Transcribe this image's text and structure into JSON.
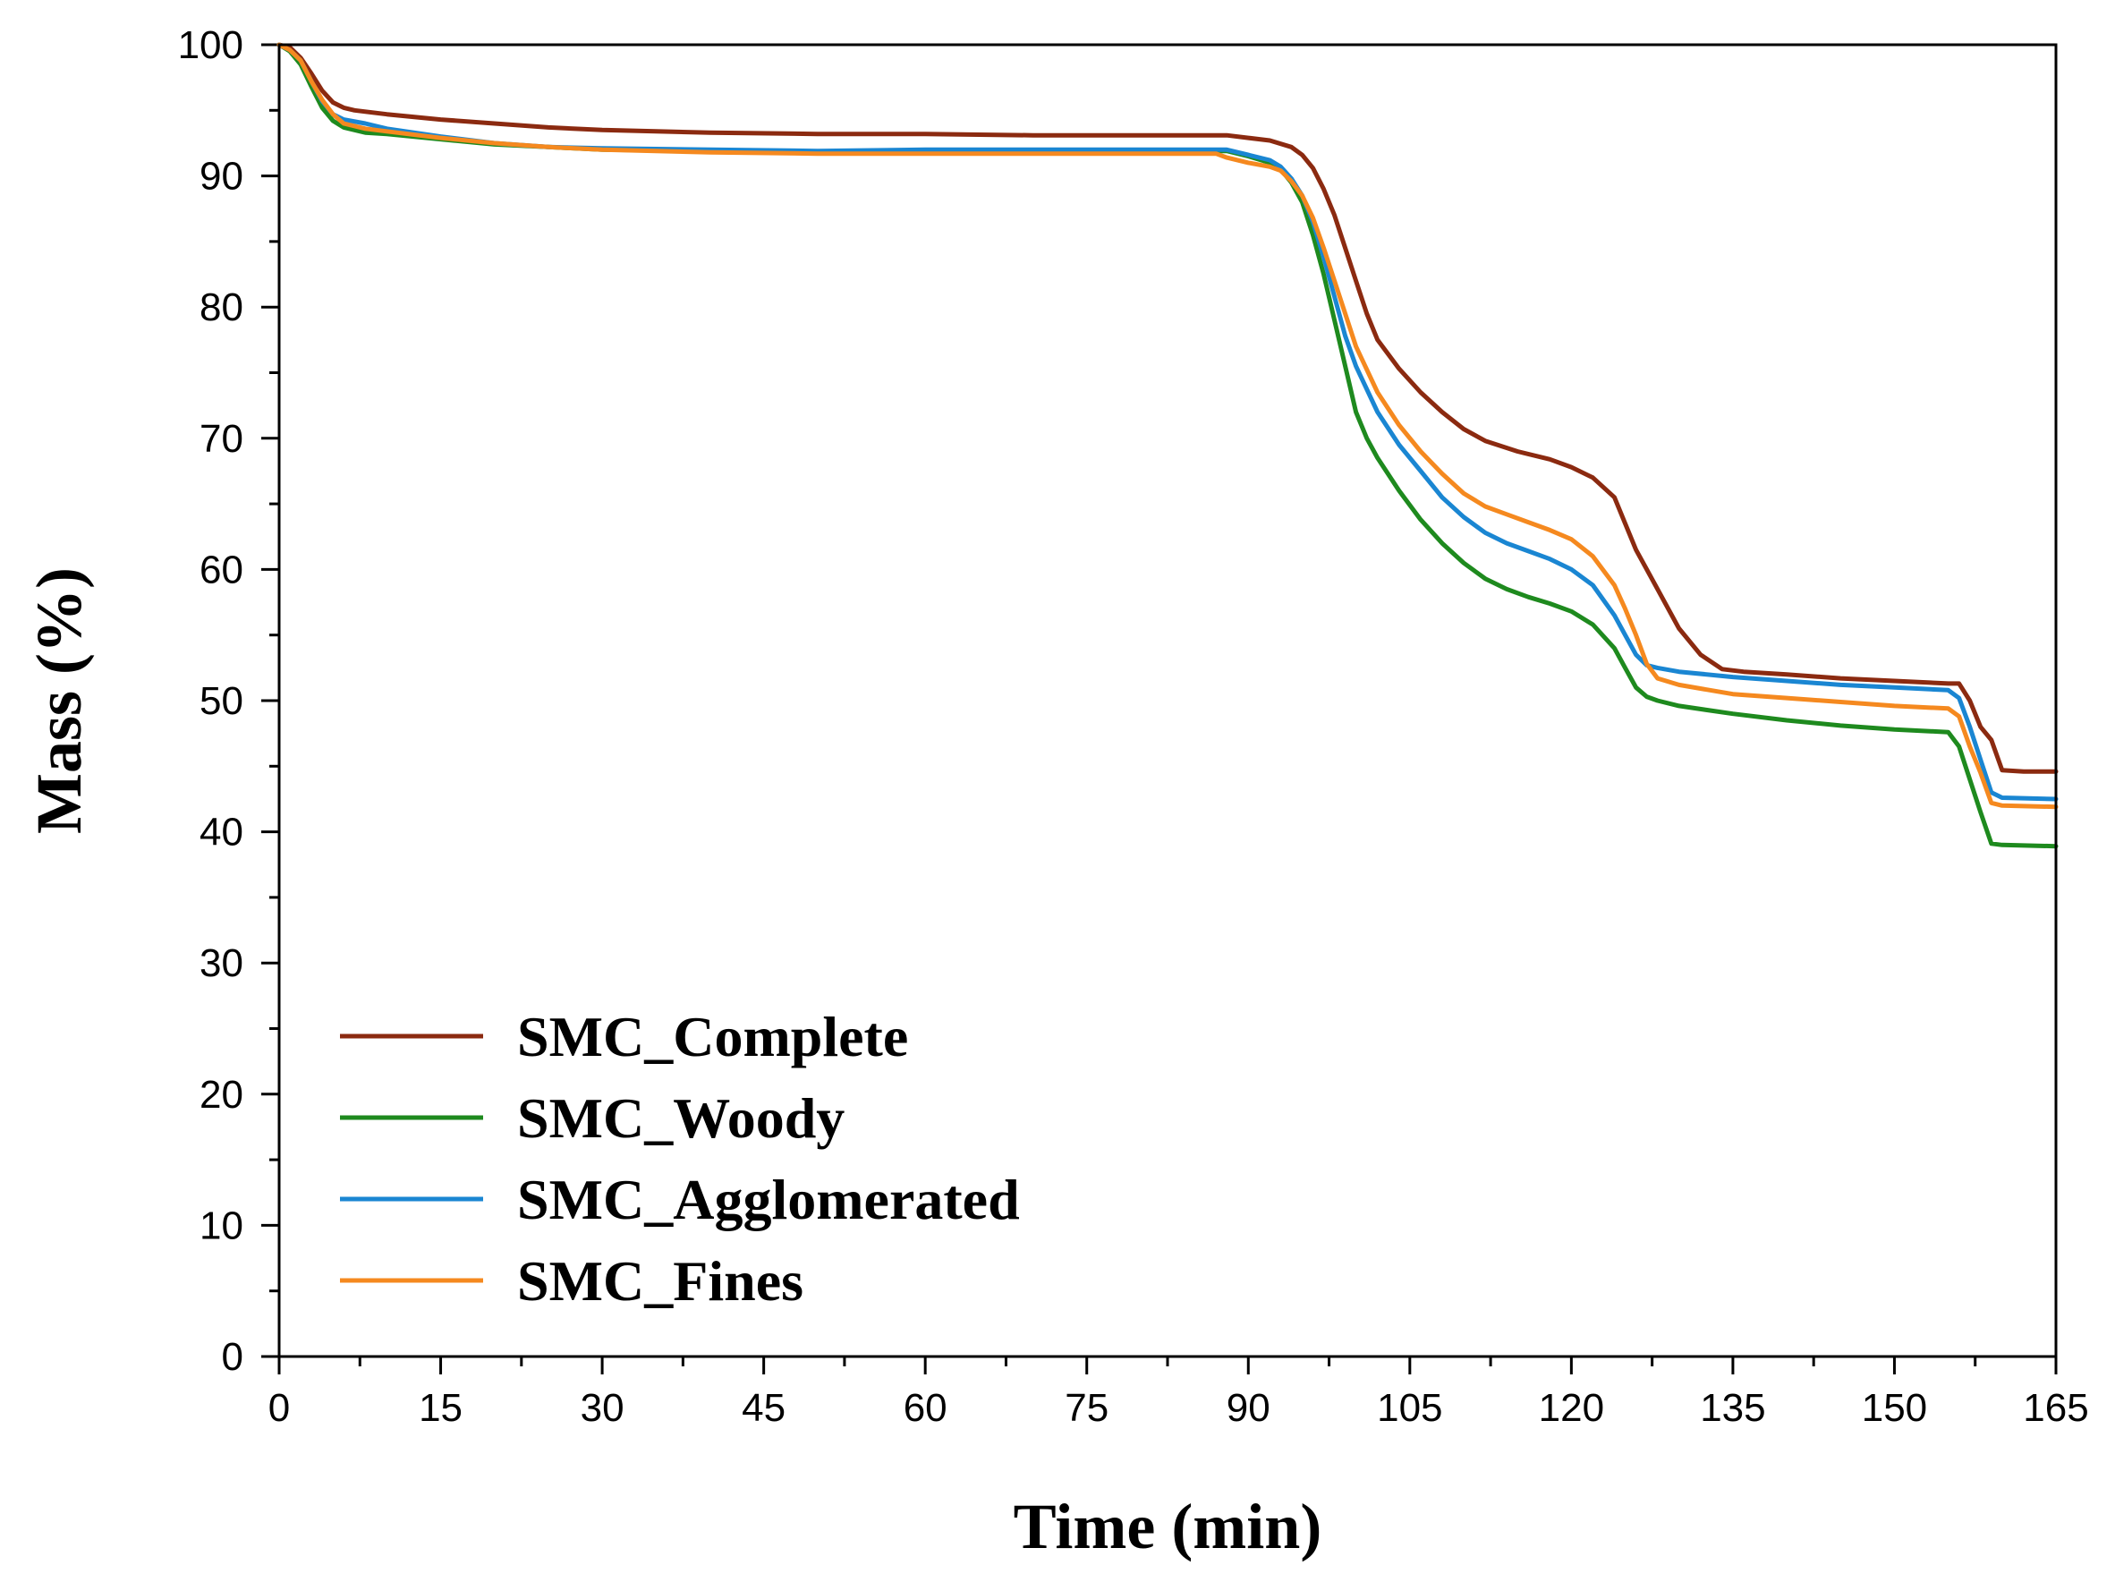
{
  "chart_data": {
    "type": "line",
    "title": "",
    "xlabel": "Time  (min)",
    "ylabel": "Mass  (%)",
    "xlim": [
      0,
      165
    ],
    "ylim": [
      0,
      100
    ],
    "xticks": [
      0,
      15,
      30,
      45,
      60,
      75,
      90,
      105,
      120,
      135,
      150,
      165
    ],
    "yticks": [
      0,
      10,
      20,
      30,
      40,
      50,
      60,
      70,
      80,
      90,
      100
    ],
    "xtick_labels": [
      "0",
      "15",
      "30",
      "45",
      "60",
      "75",
      "90",
      "105",
      "120",
      "135",
      "150",
      "165"
    ],
    "ytick_labels": [
      "0",
      "10",
      "20",
      "30",
      "40",
      "50",
      "60",
      "70",
      "80",
      "90",
      "100"
    ],
    "grid": false,
    "legend_position": "bottom-left",
    "series": [
      {
        "name": "SMC_Complete",
        "color": "#8B2A10",
        "points": [
          [
            0,
            100
          ],
          [
            1,
            99.8
          ],
          [
            2,
            99
          ],
          [
            3,
            97.8
          ],
          [
            4,
            96.5
          ],
          [
            5,
            95.6
          ],
          [
            6,
            95.2
          ],
          [
            7,
            95
          ],
          [
            10,
            94.7
          ],
          [
            15,
            94.3
          ],
          [
            20,
            94
          ],
          [
            25,
            93.7
          ],
          [
            30,
            93.5
          ],
          [
            40,
            93.3
          ],
          [
            50,
            93.2
          ],
          [
            60,
            93.2
          ],
          [
            70,
            93.1
          ],
          [
            80,
            93.1
          ],
          [
            88,
            93.1
          ],
          [
            90,
            92.9
          ],
          [
            92,
            92.7
          ],
          [
            94,
            92.2
          ],
          [
            95,
            91.6
          ],
          [
            96,
            90.6
          ],
          [
            97,
            89
          ],
          [
            98,
            87
          ],
          [
            99,
            84.5
          ],
          [
            100,
            82
          ],
          [
            101,
            79.5
          ],
          [
            102,
            77.5
          ],
          [
            104,
            75.3
          ],
          [
            106,
            73.5
          ],
          [
            108,
            72
          ],
          [
            110,
            70.7
          ],
          [
            112,
            69.8
          ],
          [
            115,
            69
          ],
          [
            118,
            68.4
          ],
          [
            120,
            67.8
          ],
          [
            122,
            67
          ],
          [
            124,
            65.5
          ],
          [
            125,
            63.5
          ],
          [
            126,
            61.5
          ],
          [
            128,
            58.5
          ],
          [
            130,
            55.5
          ],
          [
            132,
            53.5
          ],
          [
            134,
            52.4
          ],
          [
            136,
            52.2
          ],
          [
            140,
            52
          ],
          [
            145,
            51.7
          ],
          [
            150,
            51.5
          ],
          [
            155,
            51.3
          ],
          [
            156,
            51.3
          ],
          [
            157,
            50
          ],
          [
            158,
            48
          ],
          [
            159,
            47
          ],
          [
            160,
            44.7
          ],
          [
            162,
            44.6
          ],
          [
            165,
            44.6
          ]
        ]
      },
      {
        "name": "SMC_Woody",
        "color": "#1E8A1E",
        "points": [
          [
            0,
            100
          ],
          [
            1,
            99.5
          ],
          [
            2,
            98.5
          ],
          [
            3,
            96.8
          ],
          [
            4,
            95.2
          ],
          [
            5,
            94.2
          ],
          [
            6,
            93.7
          ],
          [
            8,
            93.3
          ],
          [
            10,
            93.2
          ],
          [
            15,
            92.8
          ],
          [
            20,
            92.4
          ],
          [
            25,
            92.2
          ],
          [
            30,
            92
          ],
          [
            40,
            91.9
          ],
          [
            50,
            91.8
          ],
          [
            60,
            91.9
          ],
          [
            70,
            91.9
          ],
          [
            80,
            91.9
          ],
          [
            88,
            91.9
          ],
          [
            90,
            91.5
          ],
          [
            92,
            91
          ],
          [
            93,
            90.5
          ],
          [
            94,
            89.5
          ],
          [
            95,
            88
          ],
          [
            96,
            85.5
          ],
          [
            97,
            82.5
          ],
          [
            98,
            79
          ],
          [
            99,
            75.5
          ],
          [
            100,
            72
          ],
          [
            101,
            70
          ],
          [
            102,
            68.5
          ],
          [
            104,
            66
          ],
          [
            106,
            63.8
          ],
          [
            108,
            62
          ],
          [
            110,
            60.5
          ],
          [
            112,
            59.3
          ],
          [
            114,
            58.5
          ],
          [
            116,
            57.9
          ],
          [
            118,
            57.4
          ],
          [
            120,
            56.8
          ],
          [
            122,
            55.8
          ],
          [
            124,
            54
          ],
          [
            125,
            52.5
          ],
          [
            126,
            51
          ],
          [
            127,
            50.3
          ],
          [
            128,
            50
          ],
          [
            130,
            49.6
          ],
          [
            135,
            49
          ],
          [
            140,
            48.5
          ],
          [
            145,
            48.1
          ],
          [
            150,
            47.8
          ],
          [
            155,
            47.6
          ],
          [
            156,
            46.5
          ],
          [
            157,
            44
          ],
          [
            158,
            41.5
          ],
          [
            159,
            39.1
          ],
          [
            160,
            39
          ],
          [
            165,
            38.9
          ]
        ]
      },
      {
        "name": "SMC_Agglomerated",
        "color": "#1A86D2",
        "points": [
          [
            0,
            100
          ],
          [
            1,
            99.6
          ],
          [
            2,
            98.8
          ],
          [
            3,
            97.2
          ],
          [
            4,
            95.7
          ],
          [
            5,
            94.7
          ],
          [
            6,
            94.3
          ],
          [
            8,
            94
          ],
          [
            10,
            93.6
          ],
          [
            15,
            93
          ],
          [
            20,
            92.5
          ],
          [
            25,
            92.2
          ],
          [
            30,
            92.1
          ],
          [
            40,
            92
          ],
          [
            50,
            91.9
          ],
          [
            60,
            92
          ],
          [
            70,
            92
          ],
          [
            80,
            92
          ],
          [
            88,
            92
          ],
          [
            90,
            91.6
          ],
          [
            92,
            91.2
          ],
          [
            93,
            90.7
          ],
          [
            94,
            89.8
          ],
          [
            95,
            88.5
          ],
          [
            96,
            86.5
          ],
          [
            97,
            83.8
          ],
          [
            98,
            80.8
          ],
          [
            99,
            77.8
          ],
          [
            100,
            75.5
          ],
          [
            102,
            72
          ],
          [
            104,
            69.5
          ],
          [
            106,
            67.5
          ],
          [
            108,
            65.5
          ],
          [
            110,
            64
          ],
          [
            112,
            62.8
          ],
          [
            114,
            62
          ],
          [
            116,
            61.4
          ],
          [
            118,
            60.8
          ],
          [
            120,
            60
          ],
          [
            122,
            58.8
          ],
          [
            124,
            56.5
          ],
          [
            125,
            55
          ],
          [
            126,
            53.5
          ],
          [
            127,
            52.7
          ],
          [
            128,
            52.5
          ],
          [
            130,
            52.2
          ],
          [
            135,
            51.8
          ],
          [
            140,
            51.5
          ],
          [
            145,
            51.2
          ],
          [
            150,
            51
          ],
          [
            155,
            50.8
          ],
          [
            156,
            50.2
          ],
          [
            157,
            48
          ],
          [
            158,
            45.5
          ],
          [
            159,
            43
          ],
          [
            160,
            42.6
          ],
          [
            165,
            42.5
          ]
        ]
      },
      {
        "name": "SMC_Fines",
        "color": "#F5891F",
        "points": [
          [
            0,
            100
          ],
          [
            1,
            99.6
          ],
          [
            2,
            98.8
          ],
          [
            3,
            97.2
          ],
          [
            4,
            95.8
          ],
          [
            5,
            94.7
          ],
          [
            6,
            94
          ],
          [
            8,
            93.6
          ],
          [
            10,
            93.4
          ],
          [
            15,
            92.9
          ],
          [
            20,
            92.5
          ],
          [
            25,
            92.2
          ],
          [
            30,
            92
          ],
          [
            40,
            91.8
          ],
          [
            50,
            91.7
          ],
          [
            60,
            91.7
          ],
          [
            70,
            91.7
          ],
          [
            80,
            91.7
          ],
          [
            87,
            91.7
          ],
          [
            88,
            91.4
          ],
          [
            90,
            91
          ],
          [
            92,
            90.7
          ],
          [
            93,
            90.4
          ],
          [
            94,
            89.6
          ],
          [
            95,
            88.5
          ],
          [
            96,
            86.8
          ],
          [
            97,
            84.5
          ],
          [
            98,
            82
          ],
          [
            99,
            79.5
          ],
          [
            100,
            77
          ],
          [
            102,
            73.5
          ],
          [
            104,
            71
          ],
          [
            106,
            69
          ],
          [
            108,
            67.3
          ],
          [
            110,
            65.8
          ],
          [
            112,
            64.8
          ],
          [
            114,
            64.2
          ],
          [
            116,
            63.6
          ],
          [
            118,
            63
          ],
          [
            120,
            62.3
          ],
          [
            122,
            61
          ],
          [
            124,
            58.8
          ],
          [
            125,
            57
          ],
          [
            126,
            55
          ],
          [
            127,
            52.8
          ],
          [
            128,
            51.7
          ],
          [
            130,
            51.2
          ],
          [
            135,
            50.5
          ],
          [
            140,
            50.2
          ],
          [
            145,
            49.9
          ],
          [
            150,
            49.6
          ],
          [
            155,
            49.4
          ],
          [
            156,
            48.8
          ],
          [
            157,
            46.5
          ],
          [
            158,
            44.5
          ],
          [
            159,
            42.2
          ],
          [
            160,
            42
          ],
          [
            165,
            41.9
          ]
        ]
      }
    ]
  }
}
